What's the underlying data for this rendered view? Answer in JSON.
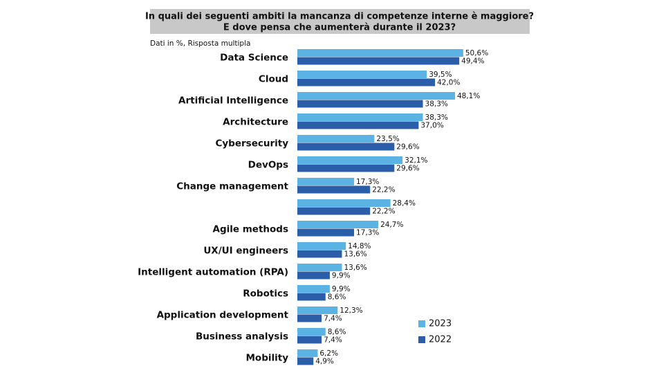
{
  "chart_data": {
    "type": "barh",
    "title": [
      "In quali dei seguenti ambiti la mancanza di competenze interne è maggiore?",
      "E dove pensa che aumenterà durante il 2023?"
    ],
    "subtitle": "Dati in %, Risposta multipla",
    "categories": [
      "Data Science",
      "Cloud",
      "Artificial Intelligence",
      "Architecture",
      "Cybersecurity",
      "DevOps",
      "Change management",
      null,
      "Agile methods",
      "UX/UI engineers",
      "Intelligent automation (RPA)",
      "Robotics",
      "Application development",
      "Business analysis",
      "Mobility"
    ],
    "series": [
      {
        "name": "2023",
        "color": "#5bb3e4",
        "values": [
          50.6,
          39.5,
          48.1,
          38.3,
          23.5,
          32.1,
          17.3,
          28.4,
          24.7,
          14.8,
          13.6,
          9.9,
          12.3,
          8.6,
          6.2
        ],
        "value_labels": [
          "50,6%",
          "39,5%",
          "48,1%",
          "38,3%",
          "23,5%",
          "32,1%",
          "17,3%",
          "28,4%",
          "24,7%",
          "14,8%",
          "13,6%",
          "9,9%",
          "12,3%",
          "8,6%",
          "6,2%"
        ]
      },
      {
        "name": "2022",
        "color": "#2a5ea8",
        "values": [
          49.4,
          42.0,
          38.3,
          37.0,
          29.6,
          29.6,
          22.2,
          22.2,
          17.3,
          13.6,
          9.9,
          8.6,
          7.4,
          7.4,
          4.9
        ],
        "value_labels": [
          "49,4%",
          "42,0%",
          "38,3%",
          "37,0%",
          "29,6%",
          "29,6%",
          "22,2%",
          "22,2%",
          "17,3%",
          "13,6%",
          "9,9%",
          "8,6%",
          "7,4%",
          "7,4%",
          "4,9%"
        ]
      }
    ],
    "legend": "lower right"
  }
}
